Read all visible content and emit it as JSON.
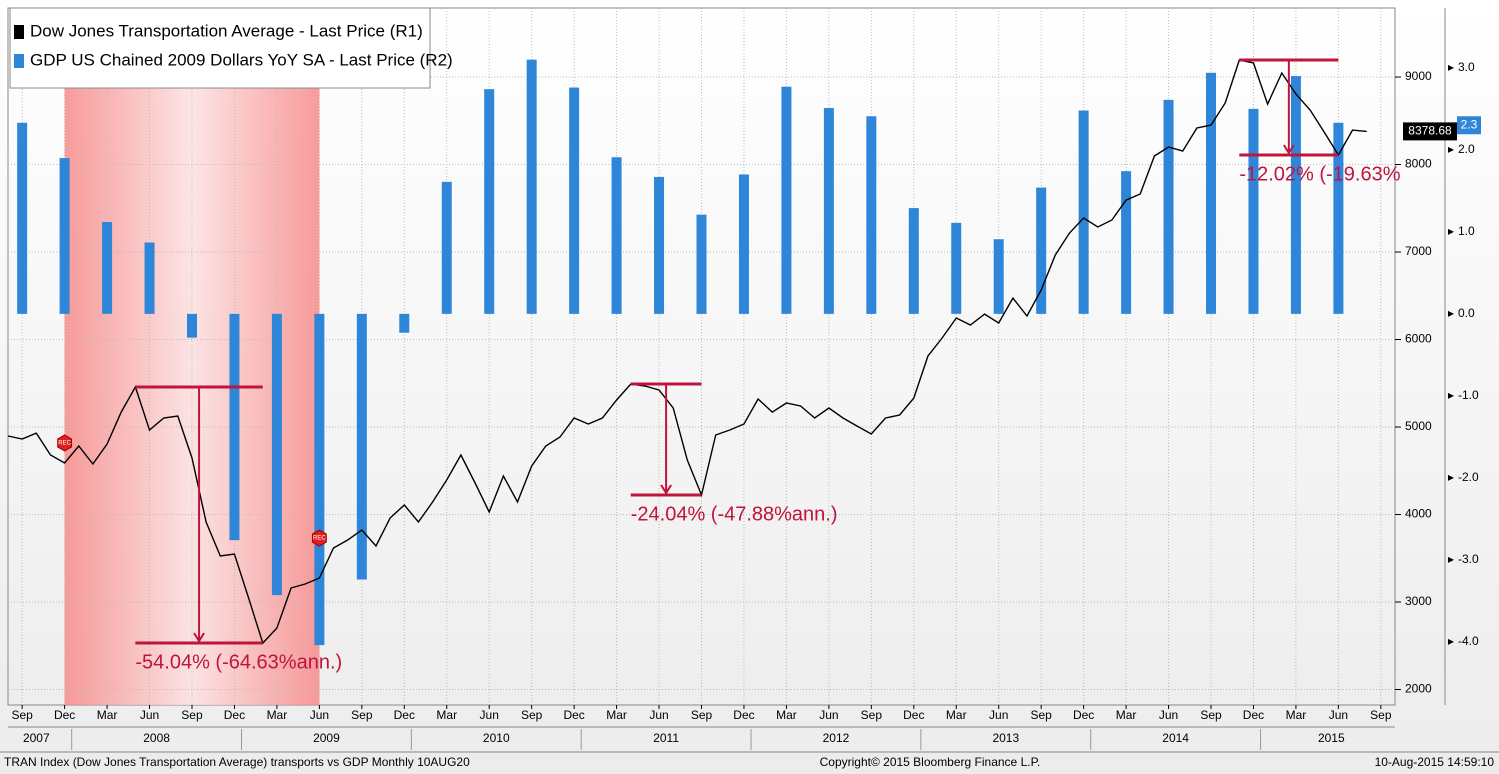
{
  "chart_data": {
    "type": "combo",
    "xlim": [
      "2007-08",
      "2015-10"
    ],
    "ylim": [
      1823,
      9789
    ],
    "y2lim": [
      -4.77,
      3.73
    ],
    "yticks": [
      2000,
      3000,
      4000,
      5000,
      6000,
      7000,
      8000,
      9000
    ],
    "y2ticks": [
      {
        "value": -4,
        "label": "-4.0"
      },
      {
        "value": -3,
        "label": "-3.0"
      },
      {
        "value": -2,
        "label": "-2.0"
      },
      {
        "value": -1,
        "label": "-1.0"
      },
      {
        "value": 0,
        "label": "0.0"
      },
      {
        "value": 1,
        "label": "1.0"
      },
      {
        "value": 2,
        "label": "2.0"
      },
      {
        "value": 3,
        "label": "3.0"
      }
    ],
    "grid": true,
    "legend": "top-left",
    "xticks": [
      {
        "value": "2007-09",
        "label": "Sep"
      },
      {
        "value": "2007-12",
        "label": "Dec"
      },
      {
        "value": "2008-03",
        "label": "Mar"
      },
      {
        "value": "2008-06",
        "label": "Jun"
      },
      {
        "value": "2008-09",
        "label": "Sep"
      },
      {
        "value": "2008-12",
        "label": "Dec"
      },
      {
        "value": "2009-03",
        "label": "Mar"
      },
      {
        "value": "2009-06",
        "label": "Jun"
      },
      {
        "value": "2009-09",
        "label": "Sep"
      },
      {
        "value": "2009-12",
        "label": "Dec"
      },
      {
        "value": "2010-03",
        "label": "Mar"
      },
      {
        "value": "2010-06",
        "label": "Jun"
      },
      {
        "value": "2010-09",
        "label": "Sep"
      },
      {
        "value": "2010-12",
        "label": "Dec"
      },
      {
        "value": "2011-03",
        "label": "Mar"
      },
      {
        "value": "2011-06",
        "label": "Jun"
      },
      {
        "value": "2011-09",
        "label": "Sep"
      },
      {
        "value": "2011-12",
        "label": "Dec"
      },
      {
        "value": "2012-03",
        "label": "Mar"
      },
      {
        "value": "2012-06",
        "label": "Jun"
      },
      {
        "value": "2012-09",
        "label": "Sep"
      },
      {
        "value": "2012-12",
        "label": "Dec"
      },
      {
        "value": "2013-03",
        "label": "Mar"
      },
      {
        "value": "2013-06",
        "label": "Jun"
      },
      {
        "value": "2013-09",
        "label": "Sep"
      },
      {
        "value": "2013-12",
        "label": "Dec"
      },
      {
        "value": "2014-03",
        "label": "Mar"
      },
      {
        "value": "2014-06",
        "label": "Jun"
      },
      {
        "value": "2014-09",
        "label": "Sep"
      },
      {
        "value": "2014-12",
        "label": "Dec"
      },
      {
        "value": "2015-03",
        "label": "Mar"
      },
      {
        "value": "2015-06",
        "label": "Jun"
      },
      {
        "value": "2015-09",
        "label": "Sep"
      }
    ],
    "years": [
      "2007",
      "2008",
      "2009",
      "2010",
      "2011",
      "2012",
      "2013",
      "2014",
      "2015"
    ],
    "series": [
      {
        "name": "Dow Jones Transportation Average - Last Price (R1)",
        "kind": "line",
        "color": "#000000",
        "x": [
          "2007-08",
          "2007-09",
          "2007-10",
          "2007-11",
          "2007-12",
          "2008-01",
          "2008-02",
          "2008-03",
          "2008-04",
          "2008-05",
          "2008-06",
          "2008-07",
          "2008-08",
          "2008-09",
          "2008-10",
          "2008-11",
          "2008-12",
          "2009-01",
          "2009-02",
          "2009-03",
          "2009-04",
          "2009-05",
          "2009-06",
          "2009-07",
          "2009-08",
          "2009-09",
          "2009-10",
          "2009-11",
          "2009-12",
          "2010-01",
          "2010-02",
          "2010-03",
          "2010-04",
          "2010-05",
          "2010-06",
          "2010-07",
          "2010-08",
          "2010-09",
          "2010-10",
          "2010-11",
          "2010-12",
          "2011-01",
          "2011-02",
          "2011-03",
          "2011-04",
          "2011-05",
          "2011-06",
          "2011-07",
          "2011-08",
          "2011-09",
          "2011-10",
          "2011-11",
          "2011-12",
          "2012-01",
          "2012-02",
          "2012-03",
          "2012-04",
          "2012-05",
          "2012-06",
          "2012-07",
          "2012-08",
          "2012-09",
          "2012-10",
          "2012-11",
          "2012-12",
          "2013-01",
          "2013-02",
          "2013-03",
          "2013-04",
          "2013-05",
          "2013-06",
          "2013-07",
          "2013-08",
          "2013-09",
          "2013-10",
          "2013-11",
          "2013-12",
          "2014-01",
          "2014-02",
          "2014-03",
          "2014-04",
          "2014-05",
          "2014-06",
          "2014-07",
          "2014-08",
          "2014-09",
          "2014-10",
          "2014-11",
          "2014-12",
          "2015-01",
          "2015-02",
          "2015-03",
          "2015-04",
          "2015-05",
          "2015-06",
          "2015-07",
          "2015-08"
        ],
        "values": [
          4897,
          4863,
          4931,
          4680,
          4589,
          4783,
          4577,
          4806,
          5171,
          5457,
          4966,
          5103,
          5126,
          4646,
          3914,
          3526,
          3549,
          3046,
          2531,
          2703,
          3160,
          3206,
          3274,
          3617,
          3709,
          3823,
          3640,
          3960,
          4109,
          3914,
          4143,
          4394,
          4680,
          4360,
          4029,
          4440,
          4143,
          4554,
          4783,
          4886,
          5103,
          5034,
          5103,
          5309,
          5491,
          5469,
          5423,
          5217,
          4623,
          4223,
          4909,
          4966,
          5034,
          5320,
          5171,
          5274,
          5240,
          5103,
          5217,
          5103,
          5011,
          4920,
          5103,
          5137,
          5331,
          5811,
          6017,
          6246,
          6166,
          6291,
          6189,
          6474,
          6269,
          6566,
          6966,
          7217,
          7389,
          7286,
          7366,
          7594,
          7663,
          8097,
          8200,
          8154,
          8417,
          8451,
          8703,
          9194,
          9160,
          8691,
          9046,
          8806,
          8623,
          8371,
          8109,
          8394,
          8379
        ],
        "last_value": 8378.68
      },
      {
        "name": "GDP US Chained 2009 Dollars YoY SA - Last Price (R2)",
        "kind": "bar",
        "axis": "y2",
        "color": "#2f86d8",
        "x": [
          "2007-09",
          "2007-12",
          "2008-03",
          "2008-06",
          "2008-09",
          "2008-12",
          "2009-03",
          "2009-06",
          "2009-09",
          "2009-12",
          "2010-03",
          "2010-06",
          "2010-09",
          "2010-12",
          "2011-03",
          "2011-06",
          "2011-09",
          "2011-12",
          "2012-03",
          "2012-06",
          "2012-09",
          "2012-12",
          "2013-03",
          "2013-06",
          "2013-09",
          "2013-12",
          "2014-03",
          "2014-06",
          "2014-09",
          "2014-12",
          "2015-03",
          "2015-06"
        ],
        "values": [
          2.33,
          1.9,
          1.12,
          0.87,
          -0.29,
          -2.76,
          -3.43,
          -4.04,
          -3.24,
          -0.23,
          1.61,
          2.74,
          3.1,
          2.76,
          1.91,
          1.67,
          1.21,
          1.7,
          2.77,
          2.51,
          2.41,
          1.29,
          1.11,
          0.91,
          1.54,
          2.48,
          1.74,
          2.61,
          2.94,
          2.5,
          2.9,
          2.33
        ],
        "last_value": 2.3
      }
    ],
    "recession": {
      "start": "2007-12",
      "end": "2009-06",
      "label": "REC"
    },
    "annotations": [
      {
        "start": "2008-05",
        "end": "2009-02",
        "text": "-54.04% (-64.63%ann.)"
      },
      {
        "start": "2011-04",
        "end": "2011-09",
        "text": "-24.04% (-47.88%ann.)"
      },
      {
        "start": "2014-11",
        "end": "2015-06",
        "text": "-12.02% (-19.63%"
      }
    ],
    "footer": {
      "left": "TRAN Index (Dow Jones Transportation Average) transports vs GDP  Monthly 10AUG20",
      "center": "Copyright© 2015 Bloomberg Finance L.P.",
      "right": "10-Aug-2015 14:59:10"
    }
  }
}
